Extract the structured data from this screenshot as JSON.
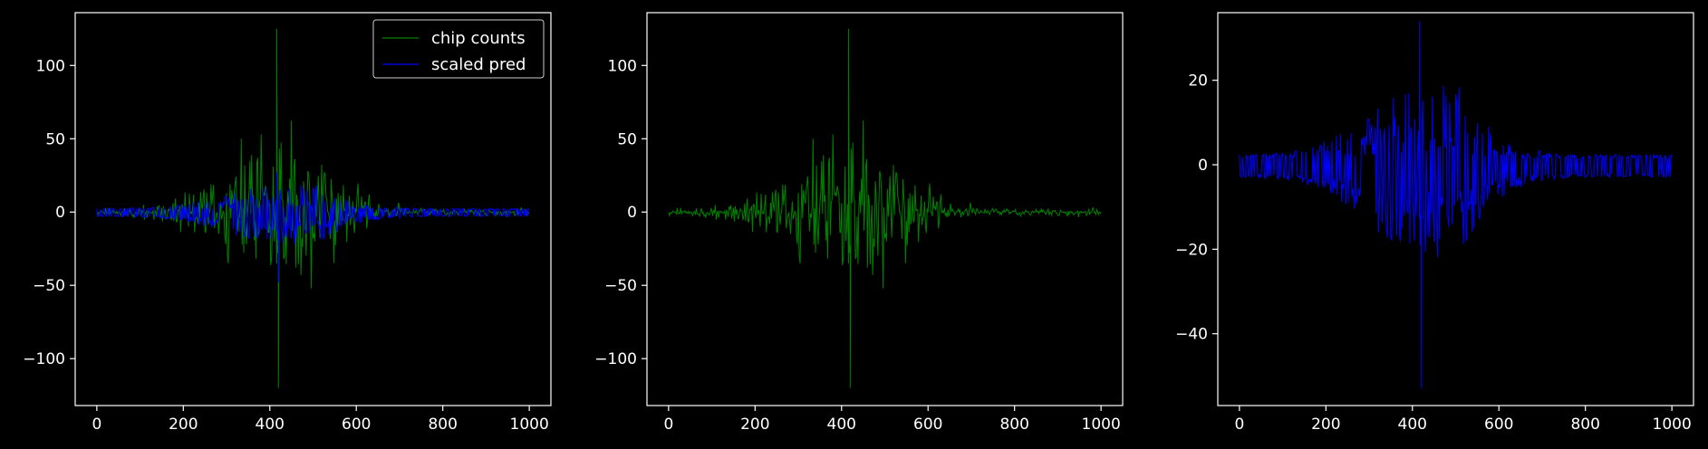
{
  "chart_data": [
    {
      "type": "line",
      "xlim": [
        -50,
        1050
      ],
      "ylim": [
        -132,
        136
      ],
      "xticks": [
        0,
        200,
        400,
        600,
        800,
        1000
      ],
      "yticks": [
        -100,
        -50,
        0,
        50,
        100
      ],
      "xtick_labels": [
        "0",
        "200",
        "400",
        "600",
        "800",
        "1000"
      ],
      "ytick_labels": [
        "−100",
        "−50",
        "0",
        "50",
        "100"
      ],
      "legend": {
        "placement": "top-right",
        "entries": [
          "chip counts",
          "scaled pred"
        ]
      },
      "series": [
        {
          "name": "chip counts",
          "color": "#008000",
          "kind": "counts",
          "seed": 11,
          "max": 125,
          "min": -120
        },
        {
          "name": "scaled pred",
          "color": "#0000ff",
          "kind": "pred",
          "seed": 29,
          "max": 27,
          "min": -48
        }
      ]
    },
    {
      "type": "line",
      "xlim": [
        -50,
        1050
      ],
      "ylim": [
        -132,
        136
      ],
      "xticks": [
        0,
        200,
        400,
        600,
        800,
        1000
      ],
      "yticks": [
        -100,
        -50,
        0,
        50,
        100
      ],
      "xtick_labels": [
        "0",
        "200",
        "400",
        "600",
        "800",
        "1000"
      ],
      "ytick_labels": [
        "−100",
        "−50",
        "0",
        "50",
        "100"
      ],
      "series": [
        {
          "color": "#008000",
          "kind": "counts",
          "seed": 11,
          "max": 125,
          "min": -120
        }
      ]
    },
    {
      "type": "line",
      "xlim": [
        -50,
        1050
      ],
      "ylim": [
        -57,
        36
      ],
      "xticks": [
        0,
        200,
        400,
        600,
        800,
        1000
      ],
      "yticks": [
        -40,
        -20,
        0,
        20
      ],
      "xtick_labels": [
        "0",
        "200",
        "400",
        "600",
        "800",
        "1000"
      ],
      "ytick_labels": [
        "−40",
        "−20",
        "0",
        "20"
      ],
      "series": [
        {
          "color": "#0000ff",
          "kind": "pred",
          "seed": 29,
          "max": 34,
          "min": -53
        }
      ]
    }
  ],
  "colors": {
    "background": "#000000",
    "axes": "#ffffff",
    "counts": "#008000",
    "pred": "#0000ff"
  }
}
